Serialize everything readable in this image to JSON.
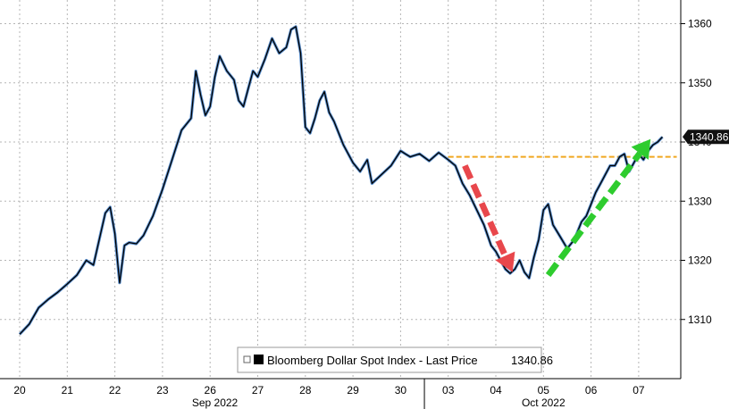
{
  "chart_data": {
    "type": "line",
    "title": "",
    "xlabel": "",
    "ylabel": "",
    "ylim": [
      1300,
      1364
    ],
    "y_ticks": [
      1310,
      1320,
      1330,
      1340,
      1350,
      1360
    ],
    "x_day_labels": [
      "20",
      "21",
      "22",
      "23",
      "26",
      "27",
      "28",
      "29",
      "30",
      "03",
      "04",
      "05",
      "06",
      "07"
    ],
    "x_month_labels": [
      "Sep 2022",
      "Oct 2022"
    ],
    "grid": true,
    "legend_position": "bottom-center",
    "series": [
      {
        "name": "Bloomberg Dollar Spot Index - Last Price",
        "last_label": "Last Price",
        "last_value": "1340.86",
        "color": "#000000",
        "highlight_color": "#3a78c2",
        "x": [
          0.0,
          0.2,
          0.4,
          0.6,
          0.8,
          1.0,
          1.2,
          1.4,
          1.55,
          1.7,
          1.8,
          1.9,
          2.0,
          2.1,
          2.2,
          2.3,
          2.45,
          2.6,
          2.8,
          3.0,
          3.2,
          3.4,
          3.6,
          3.7,
          3.8,
          3.9,
          4.0,
          4.1,
          4.2,
          4.35,
          4.5,
          4.6,
          4.7,
          4.8,
          4.9,
          5.0,
          5.15,
          5.3,
          5.45,
          5.6,
          5.7,
          5.8,
          5.9,
          6.0,
          6.1,
          6.2,
          6.3,
          6.4,
          6.5,
          6.6,
          6.8,
          7.0,
          7.15,
          7.3,
          7.4,
          7.6,
          7.8,
          8.0,
          8.1,
          8.2,
          8.4,
          8.6,
          8.8,
          9.0,
          9.15,
          9.3,
          9.45,
          9.6,
          9.75,
          9.9,
          10.0,
          10.1,
          10.2,
          10.3,
          10.4,
          10.5,
          10.6,
          10.7,
          10.8,
          10.9,
          11.0,
          11.1,
          11.2,
          11.35,
          11.5,
          11.65,
          11.8,
          11.9,
          12.0,
          12.1,
          12.2,
          12.3,
          12.4,
          12.5,
          12.6,
          12.7,
          12.8,
          12.9,
          13.0,
          13.1,
          13.2,
          13.3,
          13.4,
          13.5
        ],
        "values": [
          1307.5,
          1309.2,
          1312.0,
          1313.4,
          1314.6,
          1316.0,
          1317.5,
          1320.0,
          1319.2,
          1324.5,
          1328.0,
          1329.0,
          1324.5,
          1316.2,
          1322.5,
          1323.0,
          1322.8,
          1324.2,
          1327.5,
          1332.0,
          1337.0,
          1342.0,
          1344.0,
          1352.0,
          1348.0,
          1344.5,
          1346.0,
          1351.0,
          1354.5,
          1352.0,
          1350.5,
          1347.0,
          1346.0,
          1349.0,
          1352.0,
          1351.0,
          1354.0,
          1357.5,
          1355.0,
          1356.0,
          1359.0,
          1359.5,
          1355.0,
          1342.5,
          1341.5,
          1344.0,
          1347.0,
          1348.5,
          1345.0,
          1343.5,
          1339.5,
          1336.5,
          1335.0,
          1337.0,
          1333.0,
          1334.5,
          1336.0,
          1338.5,
          1338.0,
          1337.5,
          1338.0,
          1336.8,
          1338.2,
          1337.0,
          1336.0,
          1333.0,
          1331.0,
          1328.5,
          1326.0,
          1322.5,
          1321.5,
          1320.0,
          1318.5,
          1317.8,
          1318.5,
          1320.0,
          1318.0,
          1317.0,
          1320.5,
          1323.5,
          1328.5,
          1329.5,
          1326.0,
          1324.0,
          1322.0,
          1323.5,
          1326.5,
          1327.5,
          1329.5,
          1331.5,
          1333.0,
          1334.5,
          1336.0,
          1336.0,
          1337.5,
          1338.0,
          1335.0,
          1336.5,
          1338.0,
          1337.0,
          1338.5,
          1339.5,
          1340.0,
          1340.86
        ]
      }
    ],
    "annotations": {
      "reference_line": {
        "value": 1337.5,
        "x_start": 9.0,
        "x_end": 13.8,
        "color": "#f0a820",
        "style": "dashed"
      },
      "down_arrow": {
        "from": [
          9.35,
          1336.0
        ],
        "to": [
          10.35,
          1318.0
        ],
        "color": "#e8474c"
      },
      "up_arrow": {
        "from": [
          11.1,
          1317.5
        ],
        "to": [
          13.25,
          1340.5
        ],
        "color": "#2ecc2e"
      }
    }
  }
}
